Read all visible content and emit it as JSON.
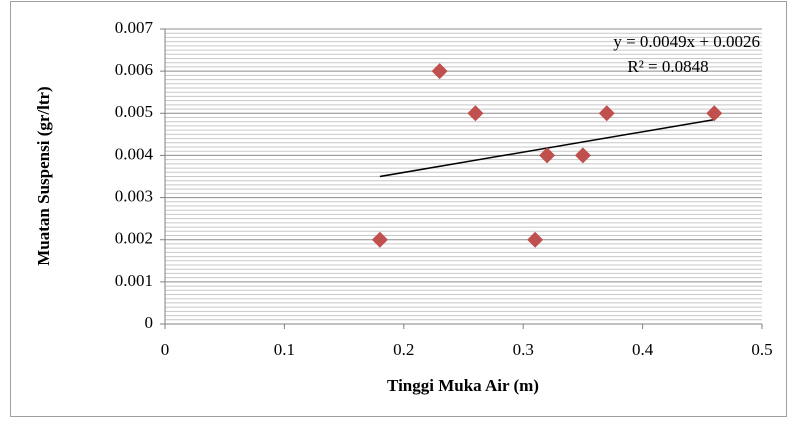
{
  "chart_data": {
    "type": "scatter",
    "x_label": "Tinggi Muka Air (m)",
    "y_label": "Muatan Suspensi (gr/ltr)",
    "x": [
      0.18,
      0.23,
      0.26,
      0.31,
      0.32,
      0.35,
      0.37,
      0.46
    ],
    "values": [
      0.002,
      0.006,
      0.005,
      0.002,
      0.004,
      0.004,
      0.005,
      0.005
    ],
    "color": "#c0504d",
    "trendline": {
      "x": [
        0.18,
        0.46
      ],
      "values": [
        0.0035,
        0.00485
      ],
      "color": "#000000"
    },
    "annotations": [
      "y = 0.0049x + 0.0026",
      "R² = 0.0848"
    ],
    "xlim": [
      0,
      0.5
    ],
    "xticks": [
      0,
      0.1,
      0.2,
      0.3,
      0.4,
      0.5
    ],
    "ylim": [
      0,
      0.007
    ],
    "yticks": [
      0,
      0.001,
      0.002,
      0.003,
      0.004,
      0.005,
      0.006,
      0.007
    ],
    "grid": true,
    "y_minor_divisions": 10
  }
}
